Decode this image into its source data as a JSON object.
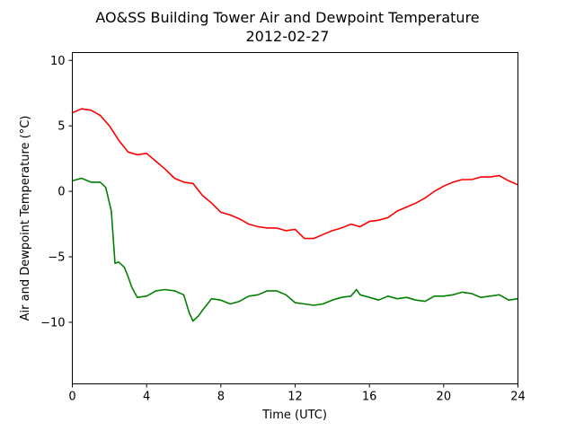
{
  "chart_data": {
    "type": "line",
    "title": "AO&SS Building Tower Air and Dewpoint Temperature",
    "subtitle": "2012-02-27",
    "xlabel": "Time (UTC)",
    "ylabel": "Air and Dewpoint Temperature (°C)",
    "xlim": [
      0,
      24
    ],
    "ylim": [
      -14.7,
      10.6
    ],
    "xticks": [
      0,
      4,
      8,
      12,
      16,
      20,
      24
    ],
    "yticks": [
      10,
      5,
      0,
      -5,
      -10
    ],
    "ytick_labels": [
      "10",
      "5",
      "0",
      "−5",
      "−10"
    ],
    "grid": false,
    "series": [
      {
        "color": "#ff0000",
        "x": [
          0,
          0.5,
          1.0,
          1.5,
          2.0,
          2.5,
          3.0,
          3.5,
          4.0,
          4.5,
          5.0,
          5.5,
          6.0,
          6.5,
          7.0,
          7.5,
          8.0,
          8.5,
          9.0,
          9.5,
          10.0,
          10.5,
          11.0,
          11.5,
          12.0,
          12.5,
          13.0,
          13.5,
          14.0,
          14.5,
          15.0,
          15.5,
          16.0,
          16.5,
          17.0,
          17.5,
          18.0,
          18.5,
          19.0,
          19.5,
          20.0,
          20.5,
          21.0,
          21.5,
          22.0,
          22.5,
          23.0,
          23.5,
          24.0
        ],
        "values": [
          6.0,
          6.3,
          6.2,
          5.8,
          5.0,
          3.9,
          3.0,
          2.8,
          2.9,
          2.3,
          1.7,
          1.0,
          0.7,
          0.6,
          -0.3,
          -0.9,
          -1.6,
          -1.8,
          -2.1,
          -2.5,
          -2.7,
          -2.8,
          -2.8,
          -3.0,
          -2.9,
          -3.6,
          -3.6,
          -3.3,
          -3.0,
          -2.8,
          -2.5,
          -2.7,
          -2.3,
          -2.2,
          -2.0,
          -1.5,
          -1.2,
          -0.9,
          -0.5,
          0.0,
          0.4,
          0.7,
          0.9,
          0.9,
          1.1,
          1.1,
          1.2,
          0.8,
          0.5
        ]
      },
      {
        "color": "#008000",
        "x": [
          0,
          0.5,
          1.0,
          1.5,
          1.8,
          2.1,
          2.3,
          2.5,
          2.8,
          3.0,
          3.2,
          3.5,
          4.0,
          4.5,
          5.0,
          5.5,
          6.0,
          6.3,
          6.5,
          6.8,
          7.0,
          7.5,
          8.0,
          8.5,
          9.0,
          9.5,
          10.0,
          10.5,
          11.0,
          11.5,
          12.0,
          12.5,
          13.0,
          13.5,
          14.0,
          14.5,
          15.0,
          15.3,
          15.5,
          16.0,
          16.5,
          17.0,
          17.5,
          18.0,
          18.5,
          19.0,
          19.5,
          20.0,
          20.5,
          21.0,
          21.5,
          22.0,
          22.5,
          23.0,
          23.5,
          24.0
        ],
        "values": [
          0.8,
          1.0,
          0.7,
          0.7,
          0.3,
          -1.5,
          -5.5,
          -5.4,
          -5.8,
          -6.5,
          -7.3,
          -8.1,
          -8.0,
          -7.6,
          -7.5,
          -7.6,
          -7.9,
          -9.3,
          -9.9,
          -9.5,
          -9.1,
          -8.2,
          -8.3,
          -8.6,
          -8.4,
          -8.0,
          -7.9,
          -7.6,
          -7.6,
          -7.9,
          -8.5,
          -8.6,
          -8.7,
          -8.6,
          -8.3,
          -8.1,
          -8.0,
          -7.5,
          -7.9,
          -8.1,
          -8.3,
          -8.0,
          -8.2,
          -8.1,
          -8.3,
          -8.4,
          -8.0,
          -8.0,
          -7.9,
          -7.7,
          -7.8,
          -8.1,
          -8.0,
          -7.9,
          -8.3,
          -8.2
        ]
      }
    ]
  }
}
